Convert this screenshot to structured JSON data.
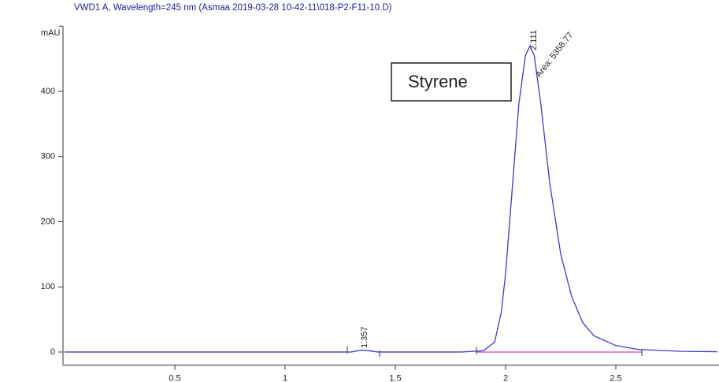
{
  "chart_data": {
    "type": "line",
    "title": "VWD1 A, Wavelength=245 nm (Asmaa 2019-03-28 10-42-11\\018-P2-F11-10.D)",
    "y_label": "mAU",
    "legend_box": "Styrene",
    "annotations": [
      "1.357",
      "2.111",
      "Area: 5358.77"
    ],
    "series": [
      {
        "color": "#3c3cc4",
        "x": [
          0,
          0.5,
          1.0,
          1.3,
          1.33,
          1.357,
          1.38,
          1.42,
          1.8,
          1.9,
          1.95,
          1.98,
          2.0,
          2.03,
          2.06,
          2.09,
          2.111,
          2.13,
          2.16,
          2.2,
          2.25,
          2.3,
          2.35,
          2.4,
          2.5,
          2.6,
          2.8,
          2.96
        ],
        "values": [
          0,
          0,
          0,
          0,
          2,
          3,
          2,
          0,
          0,
          2,
          15,
          60,
          120,
          250,
          380,
          455,
          470,
          455,
          380,
          260,
          150,
          85,
          45,
          25,
          10,
          4,
          1,
          0.5
        ]
      }
    ],
    "xlim": [
      0,
      2.96
    ],
    "xticks": [
      0.5,
      1,
      1.5,
      2,
      2.5
    ],
    "ylim": [
      -20,
      500
    ],
    "yticks": [
      0,
      100,
      200,
      300,
      400
    ]
  }
}
